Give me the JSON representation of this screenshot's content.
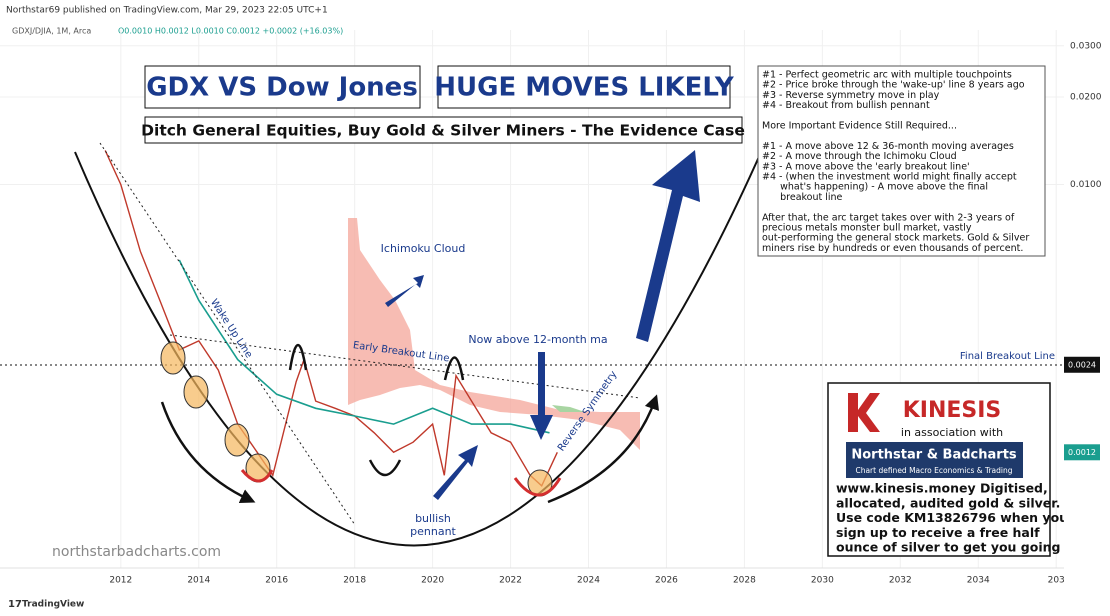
{
  "header": {
    "published": "Northstar69 published on TradingView.com, Mar 29, 2023 22:05 UTC+1",
    "symbol": "GDXJ/DJIA, 1M, Arca",
    "ohlc": "O0.0010 H0.0012 L0.0010 C0.0012 +0.0002 (+16.03%)"
  },
  "chart_data": {
    "type": "line",
    "title": "GDX VS Dow Jones",
    "headline": "HUGE MOVES LIKELY",
    "subtitle": "Ditch General Equities, Buy Gold & Silver Miners - The Evidence Case",
    "log_y": true,
    "xlim": [
      2008.9,
      2036.2
    ],
    "xticks": [
      2012,
      2014,
      2016,
      2018,
      2020,
      2022,
      2024,
      2026,
      2028,
      2030,
      2032,
      2034,
      {
        "value": 2036,
        "label": "203"
      }
    ],
    "ylim": [
      0.00048,
      0.034
    ],
    "yticks": [
      {
        "value": 0.03,
        "label": "0.0300"
      },
      {
        "value": 0.02,
        "label": "0.0200"
      },
      {
        "value": 0.01,
        "label": "0.0100"
      }
    ],
    "series": [
      {
        "name": "GDXJ/DJIA",
        "color": "#c0392b",
        "x": [
          2011.6,
          2012.0,
          2012.5,
          2013.0,
          2013.5,
          2014.0,
          2014.5,
          2015.0,
          2015.5,
          2015.9,
          2016.5,
          2016.7,
          2017.0,
          2017.5,
          2018.0,
          2018.5,
          2019.0,
          2019.5,
          2020.0,
          2020.3,
          2020.6,
          2021.0,
          2021.5,
          2022.0,
          2022.5,
          2022.8,
          2023.2
        ],
        "values": [
          0.0131,
          0.01,
          0.0059,
          0.004,
          0.0027,
          0.0029,
          0.0023,
          0.0015,
          0.0012,
          0.001,
          0.0021,
          0.0025,
          0.0018,
          0.0017,
          0.0016,
          0.0014,
          0.0012,
          0.0013,
          0.0015,
          0.001,
          0.0022,
          0.0018,
          0.0014,
          0.0013,
          0.001,
          0.00092,
          0.0012
        ]
      },
      {
        "name": "12-month ma",
        "color": "#1a9e8f",
        "x": [
          2013.5,
          2014.0,
          2015.0,
          2016.0,
          2017.0,
          2018.0,
          2019.0,
          2020.0,
          2021.0,
          2022.0,
          2023.0
        ],
        "values": [
          0.0055,
          0.004,
          0.0025,
          0.0019,
          0.0017,
          0.0016,
          0.0015,
          0.0017,
          0.0015,
          0.0015,
          0.0014
        ]
      }
    ],
    "final_breakout_line": {
      "label": "Final Breakout Line",
      "value": 0.0024
    },
    "last_price": 0.0012,
    "annotations": {
      "ichimoku_cloud": "Ichimoku Cloud",
      "wake_up_line": "Wake Up Line",
      "early_breakout_line": "Early Breakout Line",
      "now_above": "Now above 12-month ma",
      "reverse_symmetry": "Reverse Symmetry",
      "bullish_pennant": [
        "bullish",
        "pennant"
      ],
      "watermark": "northstarbadcharts.com"
    },
    "notes": [
      [
        "#1 - Perfect geometric arc with multiple touchpoints",
        "#2 - Price broke through the 'wake-up' line 8 years ago",
        "#3 - Reverse symmetry move in play",
        "#4 - Breakout from bullish pennant"
      ],
      [
        "More Important Evidence Still Required..."
      ],
      [
        "#1 - A move above 12 & 36-month moving averages",
        "#2 - A move through the Ichimoku Cloud",
        "#3 - A move above the 'early breakout line'",
        "#4 - (when the investment world might finally accept",
        "      what's happening) - A move above the final",
        "      breakout line"
      ],
      [
        "After that, the arc target takes over with 2-3 years of",
        "precious metals monster bull market, vastly",
        "out-performing the general stock markets. Gold & Silver",
        "miners rise by hundreds or even thousands of percent."
      ]
    ],
    "sponsor": {
      "name": "KINESIS",
      "association": "in association with",
      "partner": "Northstar & Badcharts",
      "tagline": "Chart defined Macro Economics & Trading",
      "lines": [
        "www.kinesis.money Digitised,",
        "allocated, audited gold & silver.",
        "Use code KM13826796 when you",
        "sign up to receive a free half",
        "ounce of silver to get you going"
      ]
    }
  },
  "footer": {
    "brand": "TradingView"
  }
}
